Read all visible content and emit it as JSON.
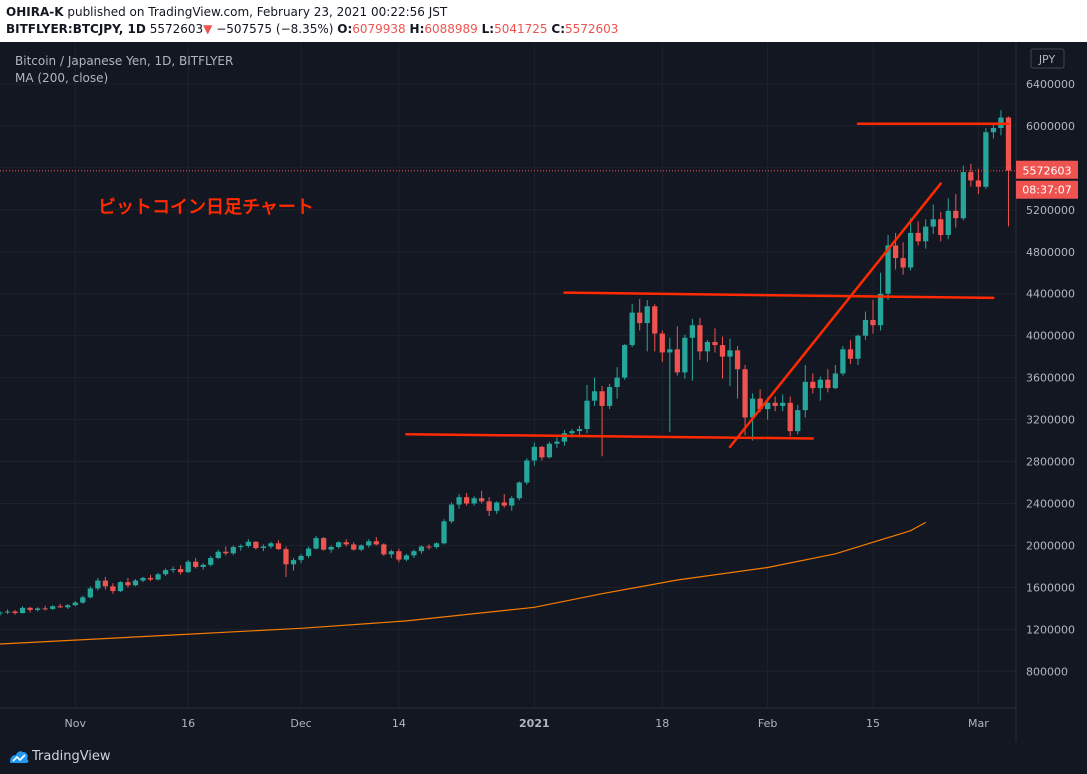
{
  "header": {
    "publisher": "OHIRA-K",
    "published_text": "published on TradingView.com, February 23, 2021 00:22:56 JST",
    "symbol": "BITFLYER:BTCJPY, 1D",
    "last": "5572603",
    "change_arrow": "▼",
    "change": "−507575 (−8.35%)",
    "open_label": "O:",
    "open": "6079938",
    "high_label": "H:",
    "high": "6088989",
    "low_label": "L:",
    "low": "5041725",
    "close_label": "C:",
    "close": "5572603"
  },
  "legend": {
    "title": "Bitcoin / Japanese Yen, 1D, BITFLYER",
    "indicator": "MA (200, close)"
  },
  "annotation": {
    "text": "ビットコイン日足チャート",
    "color": "#ff2a00"
  },
  "price_badge": {
    "value": "5572603",
    "timer": "08:37:07"
  },
  "currency_badge": "JPY",
  "footer": {
    "brand": "TradingView",
    "logo_icon": "tradingview-logo-icon"
  },
  "colors": {
    "background": "#131722",
    "up": "#26a69a",
    "down": "#ef5350",
    "ma": "#f57c00",
    "annotation": "#ff2a00",
    "text": "#b2b5be"
  },
  "chart_data": {
    "type": "candlestick",
    "title": "Bitcoin / Japanese Yen, 1D, BITFLYER",
    "ylim": [
      450000,
      6800000
    ],
    "y_ticks": [
      800000,
      1200000,
      1600000,
      2000000,
      2400000,
      2800000,
      3200000,
      3600000,
      4000000,
      4400000,
      4800000,
      5200000,
      5600000,
      6000000,
      6400000
    ],
    "x_ticks": [
      {
        "label": "Nov",
        "date": "2020-11-01",
        "bold": false
      },
      {
        "label": "16",
        "date": "2020-11-16",
        "bold": false
      },
      {
        "label": "Dec",
        "date": "2020-12-01",
        "bold": false
      },
      {
        "label": "14",
        "date": "2020-12-14",
        "bold": false
      },
      {
        "label": "2021",
        "date": "2021-01-01",
        "bold": true
      },
      {
        "label": "18",
        "date": "2021-01-18",
        "bold": false
      },
      {
        "label": "Feb",
        "date": "2021-02-01",
        "bold": false
      },
      {
        "label": "15",
        "date": "2021-02-15",
        "bold": false
      },
      {
        "label": "Mar",
        "date": "2021-03-01",
        "bold": false
      }
    ],
    "x_range": [
      "2020-10-22",
      "2021-03-06"
    ],
    "grid": true,
    "candles_start_date": "2020-10-22",
    "candles": [
      [
        1350000,
        1375000,
        1330000,
        1360000
      ],
      [
        1360000,
        1390000,
        1345000,
        1370000
      ],
      [
        1370000,
        1385000,
        1340000,
        1355000
      ],
      [
        1355000,
        1420000,
        1350000,
        1405000
      ],
      [
        1405000,
        1415000,
        1360000,
        1385000
      ],
      [
        1385000,
        1410000,
        1370000,
        1400000
      ],
      [
        1400000,
        1425000,
        1380000,
        1395000
      ],
      [
        1395000,
        1430000,
        1385000,
        1420000
      ],
      [
        1420000,
        1445000,
        1405000,
        1410000
      ],
      [
        1410000,
        1440000,
        1395000,
        1430000
      ],
      [
        1430000,
        1470000,
        1420000,
        1455000
      ],
      [
        1455000,
        1520000,
        1445000,
        1505000
      ],
      [
        1505000,
        1610000,
        1495000,
        1590000
      ],
      [
        1590000,
        1690000,
        1570000,
        1665000
      ],
      [
        1665000,
        1700000,
        1580000,
        1610000
      ],
      [
        1610000,
        1640000,
        1540000,
        1565000
      ],
      [
        1565000,
        1660000,
        1555000,
        1650000
      ],
      [
        1650000,
        1690000,
        1600000,
        1620000
      ],
      [
        1620000,
        1680000,
        1610000,
        1665000
      ],
      [
        1665000,
        1700000,
        1650000,
        1690000
      ],
      [
        1690000,
        1720000,
        1660000,
        1675000
      ],
      [
        1675000,
        1740000,
        1665000,
        1725000
      ],
      [
        1725000,
        1780000,
        1710000,
        1765000
      ],
      [
        1765000,
        1800000,
        1740000,
        1775000
      ],
      [
        1775000,
        1810000,
        1720000,
        1745000
      ],
      [
        1745000,
        1860000,
        1740000,
        1845000
      ],
      [
        1845000,
        1880000,
        1780000,
        1795000
      ],
      [
        1795000,
        1830000,
        1770000,
        1815000
      ],
      [
        1815000,
        1900000,
        1800000,
        1880000
      ],
      [
        1880000,
        1960000,
        1870000,
        1940000
      ],
      [
        1940000,
        1990000,
        1905000,
        1925000
      ],
      [
        1925000,
        2000000,
        1910000,
        1985000
      ],
      [
        1985000,
        2010000,
        1950000,
        1995000
      ],
      [
        1995000,
        2060000,
        1980000,
        2035000
      ],
      [
        2035000,
        2040000,
        1960000,
        1975000
      ],
      [
        1975000,
        2010000,
        1945000,
        1990000
      ],
      [
        1990000,
        2035000,
        1970000,
        2020000
      ],
      [
        2020000,
        2050000,
        1955000,
        1965000
      ],
      [
        1965000,
        1990000,
        1700000,
        1820000
      ],
      [
        1820000,
        1880000,
        1760000,
        1860000
      ],
      [
        1860000,
        1920000,
        1830000,
        1900000
      ],
      [
        1900000,
        1990000,
        1880000,
        1970000
      ],
      [
        1970000,
        2090000,
        1960000,
        2070000
      ],
      [
        2070000,
        2080000,
        1950000,
        1960000
      ],
      [
        1960000,
        2000000,
        1930000,
        1985000
      ],
      [
        1985000,
        2040000,
        1970000,
        2030000
      ],
      [
        2030000,
        2060000,
        1990000,
        2010000
      ],
      [
        2010000,
        2030000,
        1950000,
        1960000
      ],
      [
        1960000,
        2010000,
        1945000,
        2000000
      ],
      [
        2000000,
        2060000,
        1980000,
        2040000
      ],
      [
        2040000,
        2080000,
        2000000,
        2010000
      ],
      [
        2010000,
        2020000,
        1900000,
        1915000
      ],
      [
        1915000,
        1960000,
        1880000,
        1945000
      ],
      [
        1945000,
        1970000,
        1840000,
        1865000
      ],
      [
        1865000,
        1920000,
        1850000,
        1905000
      ],
      [
        1905000,
        1960000,
        1880000,
        1945000
      ],
      [
        1945000,
        2000000,
        1920000,
        1990000
      ],
      [
        1990000,
        2010000,
        1960000,
        1985000
      ],
      [
        1985000,
        2030000,
        1970000,
        2020000
      ],
      [
        2020000,
        2250000,
        2010000,
        2230000
      ],
      [
        2230000,
        2410000,
        2210000,
        2390000
      ],
      [
        2390000,
        2490000,
        2350000,
        2460000
      ],
      [
        2460000,
        2500000,
        2380000,
        2400000
      ],
      [
        2400000,
        2470000,
        2380000,
        2450000
      ],
      [
        2450000,
        2520000,
        2400000,
        2420000
      ],
      [
        2420000,
        2460000,
        2280000,
        2330000
      ],
      [
        2330000,
        2420000,
        2300000,
        2410000
      ],
      [
        2410000,
        2490000,
        2360000,
        2380000
      ],
      [
        2380000,
        2470000,
        2330000,
        2450000
      ],
      [
        2450000,
        2610000,
        2430000,
        2600000
      ],
      [
        2600000,
        2830000,
        2580000,
        2810000
      ],
      [
        2810000,
        2980000,
        2760000,
        2940000
      ],
      [
        2940000,
        2950000,
        2810000,
        2840000
      ],
      [
        2840000,
        2990000,
        2830000,
        2970000
      ],
      [
        2970000,
        3030000,
        2930000,
        2990000
      ],
      [
        2990000,
        3100000,
        2950000,
        3070000
      ],
      [
        3070000,
        3110000,
        3030000,
        3090000
      ],
      [
        3090000,
        3140000,
        3030000,
        3110000
      ],
      [
        3110000,
        3530000,
        3070000,
        3380000
      ],
      [
        3380000,
        3600000,
        3330000,
        3470000
      ],
      [
        3470000,
        3520000,
        2850000,
        3330000
      ],
      [
        3330000,
        3540000,
        3300000,
        3510000
      ],
      [
        3510000,
        3700000,
        3400000,
        3600000
      ],
      [
        3600000,
        3920000,
        3580000,
        3910000
      ],
      [
        3910000,
        4300000,
        3890000,
        4220000
      ],
      [
        4220000,
        4350000,
        4050000,
        4120000
      ],
      [
        4120000,
        4340000,
        3850000,
        4280000
      ],
      [
        4280000,
        4300000,
        3850000,
        4020000
      ],
      [
        4020000,
        4050000,
        3750000,
        3840000
      ],
      [
        3840000,
        3980000,
        3080000,
        3870000
      ],
      [
        3870000,
        4090000,
        3620000,
        3650000
      ],
      [
        3650000,
        4010000,
        3590000,
        3980000
      ],
      [
        3980000,
        4160000,
        3570000,
        4100000
      ],
      [
        4100000,
        4170000,
        3770000,
        3850000
      ],
      [
        3850000,
        3960000,
        3750000,
        3940000
      ],
      [
        3940000,
        4070000,
        3840000,
        3910000
      ],
      [
        3910000,
        3990000,
        3590000,
        3800000
      ],
      [
        3800000,
        3970000,
        3520000,
        3860000
      ],
      [
        3860000,
        3900000,
        3400000,
        3680000
      ],
      [
        3680000,
        3720000,
        3050000,
        3220000
      ],
      [
        3220000,
        3450000,
        3000000,
        3400000
      ],
      [
        3400000,
        3490000,
        3270000,
        3300000
      ],
      [
        3300000,
        3410000,
        3200000,
        3360000
      ],
      [
        3360000,
        3420000,
        3280000,
        3330000
      ],
      [
        3330000,
        3440000,
        3280000,
        3360000
      ],
      [
        3360000,
        3420000,
        3040000,
        3090000
      ],
      [
        3090000,
        3340000,
        3060000,
        3290000
      ],
      [
        3290000,
        3720000,
        3220000,
        3560000
      ],
      [
        3560000,
        3640000,
        3450000,
        3500000
      ],
      [
        3500000,
        3610000,
        3380000,
        3580000
      ],
      [
        3580000,
        3680000,
        3460000,
        3500000
      ],
      [
        3500000,
        3720000,
        3490000,
        3640000
      ],
      [
        3640000,
        3900000,
        3620000,
        3870000
      ],
      [
        3870000,
        3960000,
        3730000,
        3780000
      ],
      [
        3780000,
        4010000,
        3720000,
        4000000
      ],
      [
        4000000,
        4230000,
        3960000,
        4150000
      ],
      [
        4150000,
        4340000,
        4020000,
        4100000
      ],
      [
        4100000,
        4600000,
        4050000,
        4400000
      ],
      [
        4400000,
        4960000,
        4340000,
        4860000
      ],
      [
        4860000,
        4980000,
        4630000,
        4740000
      ],
      [
        4740000,
        4890000,
        4580000,
        4650000
      ],
      [
        4650000,
        5120000,
        4620000,
        4980000
      ],
      [
        4980000,
        5090000,
        4860000,
        4900000
      ],
      [
        4900000,
        5110000,
        4830000,
        5040000
      ],
      [
        5040000,
        5250000,
        4970000,
        5110000
      ],
      [
        5110000,
        5180000,
        4900000,
        4960000
      ],
      [
        4960000,
        5310000,
        4920000,
        5190000
      ],
      [
        5190000,
        5350000,
        5030000,
        5120000
      ],
      [
        5120000,
        5620000,
        5100000,
        5560000
      ],
      [
        5560000,
        5640000,
        5420000,
        5480000
      ],
      [
        5480000,
        5590000,
        5350000,
        5420000
      ],
      [
        5420000,
        5980000,
        5400000,
        5940000
      ],
      [
        5940000,
        6020000,
        5880000,
        5980000
      ],
      [
        5980000,
        6150000,
        5910000,
        6080000
      ],
      [
        6079938,
        6088989,
        5041725,
        5572603
      ]
    ],
    "series": [
      {
        "name": "MA (200, close)",
        "x": [
          "2020-10-22",
          "2020-11-15",
          "2020-12-01",
          "2020-12-15",
          "2021-01-01",
          "2021-01-10",
          "2021-01-20",
          "2021-02-01",
          "2021-02-10",
          "2021-02-20",
          "2021-02-22"
        ],
        "y": [
          1060000,
          1150000,
          1210000,
          1280000,
          1410000,
          1540000,
          1670000,
          1790000,
          1920000,
          2140000,
          2220000
        ]
      }
    ],
    "annotations": [
      {
        "type": "line",
        "from": [
          "2020-12-15",
          3060000
        ],
        "to": [
          "2021-02-07",
          3020000
        ]
      },
      {
        "type": "line",
        "from": [
          "2021-01-05",
          4410000
        ],
        "to": [
          "2021-03-03",
          4360000
        ]
      },
      {
        "type": "line",
        "from": [
          "2021-02-13",
          6020000
        ],
        "to": [
          "2021-03-05",
          6020000
        ]
      },
      {
        "type": "line",
        "from": [
          "2021-01-27",
          2940000
        ],
        "to": [
          "2021-02-24",
          5450000
        ]
      }
    ],
    "last_price": 5572603
  }
}
